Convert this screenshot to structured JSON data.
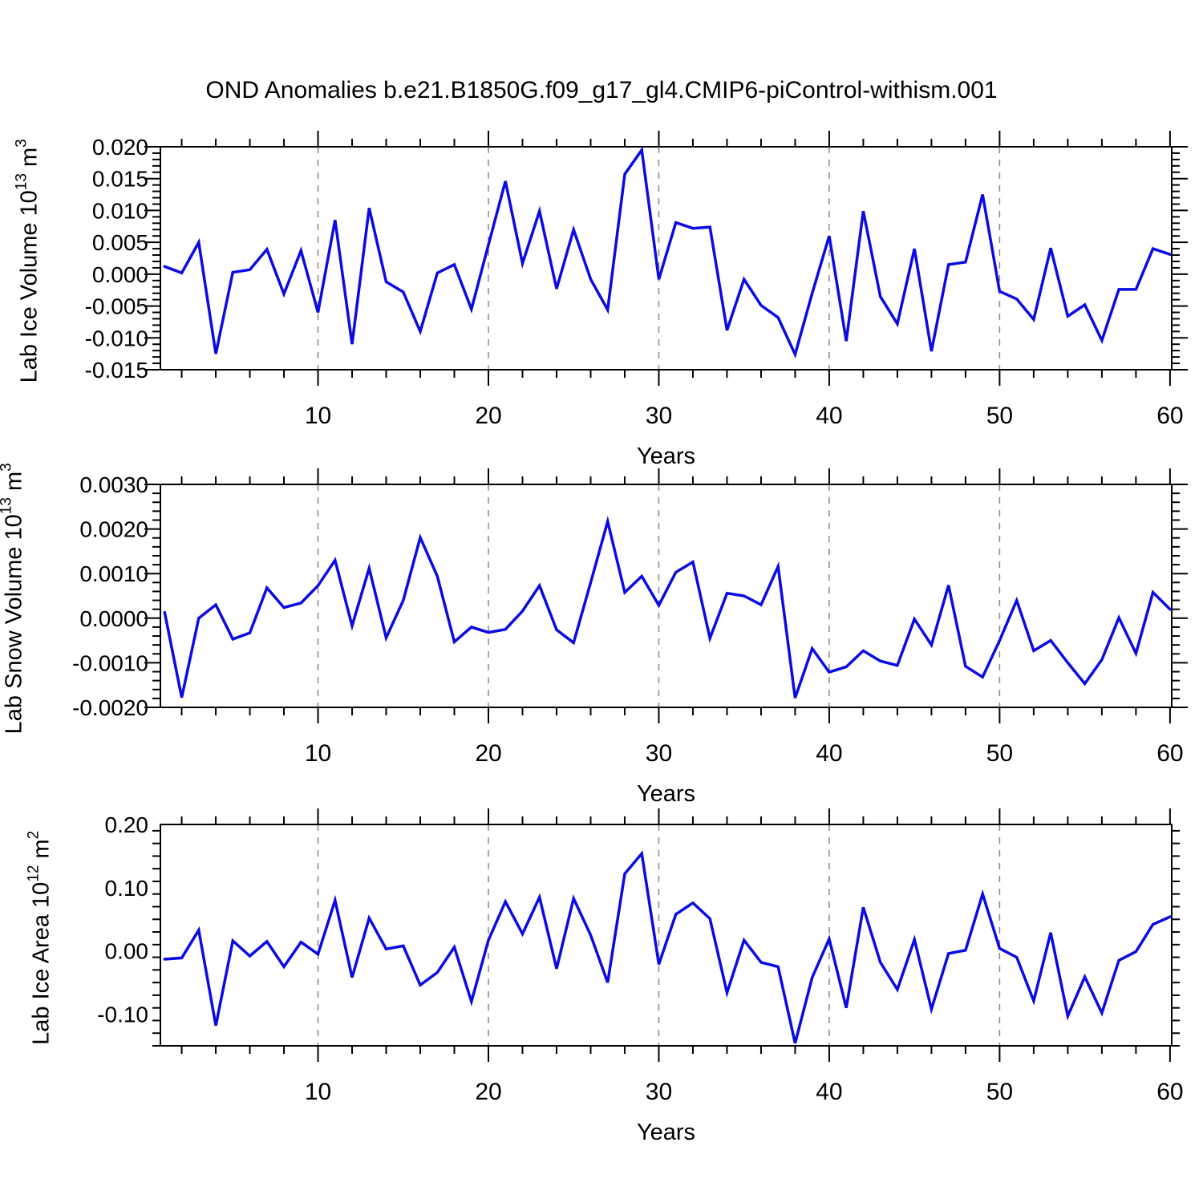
{
  "title": "OND Anomalies b.e21.B1850G.f09_g17_gl4.CMIP6-piControl-withism.001",
  "chart_data": {
    "type": "line",
    "x_label": "Years",
    "years": [
      1,
      2,
      3,
      4,
      5,
      6,
      7,
      8,
      9,
      10,
      11,
      12,
      13,
      14,
      15,
      16,
      17,
      18,
      19,
      20,
      21,
      22,
      23,
      24,
      25,
      26,
      27,
      28,
      29,
      30,
      31,
      32,
      33,
      34,
      35,
      36,
      37,
      38,
      39,
      40,
      41,
      42,
      43,
      44,
      45,
      46,
      47,
      48,
      49,
      50,
      51,
      52,
      53,
      54,
      55,
      56,
      57,
      58,
      59,
      60
    ],
    "x_major_ticks": [
      10,
      20,
      30,
      40,
      50,
      60
    ],
    "x_minor_step": 2,
    "grid_years": [
      10,
      20,
      30,
      40,
      50
    ],
    "grid_style": "dashed",
    "series_color": "#0a0ae6",
    "grid_color": "#888888",
    "frame_color": "#000000",
    "panels": [
      {
        "name": "lab-ice-volume",
        "ylabel_text": "Lab Ice Volume 10^13 m^3",
        "ylabel": {
          "base": "Lab Ice Volume 10",
          "exp": "13",
          "unit": " m",
          "unit_exp": "3"
        },
        "ylim": [
          -0.015,
          0.02
        ],
        "ytick_values": [
          0.02,
          0.015,
          0.01,
          0.005,
          0.0,
          -0.005,
          -0.01,
          -0.015
        ],
        "ytick_labels": [
          "0.020",
          "0.015",
          "0.010",
          "0.005",
          "0.000",
          "-0.005",
          "-0.010",
          "-0.015"
        ],
        "y_minor_step": 0.001,
        "values": [
          0.0012,
          0.0002,
          0.005,
          -0.0125,
          0.0003,
          0.0007,
          0.0039,
          -0.0031,
          0.0037,
          -0.006,
          0.0085,
          -0.011,
          0.0104,
          -0.0012,
          -0.0028,
          -0.009,
          0.0002,
          0.0015,
          -0.0055,
          0.0046,
          0.0146,
          0.0017,
          0.0099,
          -0.0023,
          0.007,
          -0.0008,
          -0.0056,
          0.0157,
          0.0195,
          -0.0008,
          0.0081,
          0.0072,
          0.0074,
          -0.0088,
          -0.0008,
          -0.0049,
          -0.0068,
          -0.0126,
          -0.003,
          0.006,
          -0.0105,
          0.0099,
          -0.0035,
          -0.0078,
          0.004,
          -0.0121,
          0.0015,
          0.0019,
          0.0125,
          -0.0027,
          -0.0039,
          -0.0071,
          0.0041,
          -0.0066,
          -0.0048,
          -0.0104,
          -0.0024,
          -0.0024,
          0.004,
          0.0031
        ]
      },
      {
        "name": "lab-snow-volume",
        "ylabel_text": "Lab Snow Volume 10^13 m^3",
        "ylabel": {
          "base": "Lab Snow Volume 10",
          "exp": "13",
          "unit": " m",
          "unit_exp": "3"
        },
        "ylim": [
          -0.002,
          0.003
        ],
        "ytick_values": [
          0.003,
          0.002,
          0.001,
          0.0,
          -0.001,
          -0.002
        ],
        "ytick_labels": [
          "0.0030",
          "0.0020",
          "0.0010",
          "0.0000",
          "-0.0010",
          "-0.0020"
        ],
        "y_minor_step": 0.0002,
        "values": [
          0.00013,
          -0.00178,
          0.0,
          0.0003,
          -0.00047,
          -0.00033,
          0.00068,
          0.00024,
          0.00034,
          0.00073,
          0.0013,
          -0.00017,
          0.00112,
          -0.00044,
          0.0004,
          0.00181,
          0.00094,
          -0.00053,
          -0.0002,
          -0.00032,
          -0.00025,
          0.00016,
          0.00073,
          -0.00026,
          -0.00055,
          0.0008,
          0.00217,
          0.00058,
          0.00094,
          0.00029,
          0.00103,
          0.00126,
          -0.00045,
          0.00056,
          0.0005,
          0.0003,
          0.00116,
          -0.00179,
          -0.00068,
          -0.00121,
          -0.00109,
          -0.00073,
          -0.00096,
          -0.00106,
          -2e-05,
          -0.0006,
          0.00074,
          -0.00108,
          -0.00132,
          -0.0005,
          0.0004,
          -0.00073,
          -0.0005,
          -0.001,
          -0.00147,
          -0.00093,
          1e-05,
          -0.00079,
          0.00058,
          0.0002
        ]
      },
      {
        "name": "lab-ice-area",
        "ylabel_text": "Lab Ice Area 10^12 m^2",
        "ylabel": {
          "base": "Lab Ice Area 10",
          "exp": "12",
          "unit": " m",
          "unit_exp": "2"
        },
        "ylim": [
          -0.15,
          0.2
        ],
        "ytick_values": [
          0.2,
          0.1,
          0.0,
          -0.1
        ],
        "ytick_labels": [
          "0.20",
          "0.10",
          "0.00",
          "-0.10"
        ],
        "y_minor_step": 0.02,
        "values": [
          -0.013,
          -0.011,
          0.033,
          -0.118,
          0.016,
          -0.008,
          0.015,
          -0.025,
          0.014,
          -0.005,
          0.08,
          -0.042,
          0.052,
          0.003,
          0.008,
          -0.054,
          -0.034,
          0.006,
          -0.08,
          0.017,
          0.078,
          0.027,
          0.085,
          -0.028,
          0.083,
          0.025,
          -0.05,
          0.122,
          0.154,
          -0.021,
          0.058,
          0.076,
          0.051,
          -0.066,
          0.017,
          -0.018,
          -0.025,
          -0.146,
          -0.042,
          0.019,
          -0.09,
          0.069,
          -0.018,
          -0.061,
          0.018,
          -0.092,
          -0.004,
          0.001,
          0.09,
          0.004,
          -0.01,
          -0.079,
          0.029,
          -0.103,
          -0.041,
          -0.098,
          -0.015,
          -0.001,
          0.042,
          0.054
        ]
      }
    ]
  }
}
